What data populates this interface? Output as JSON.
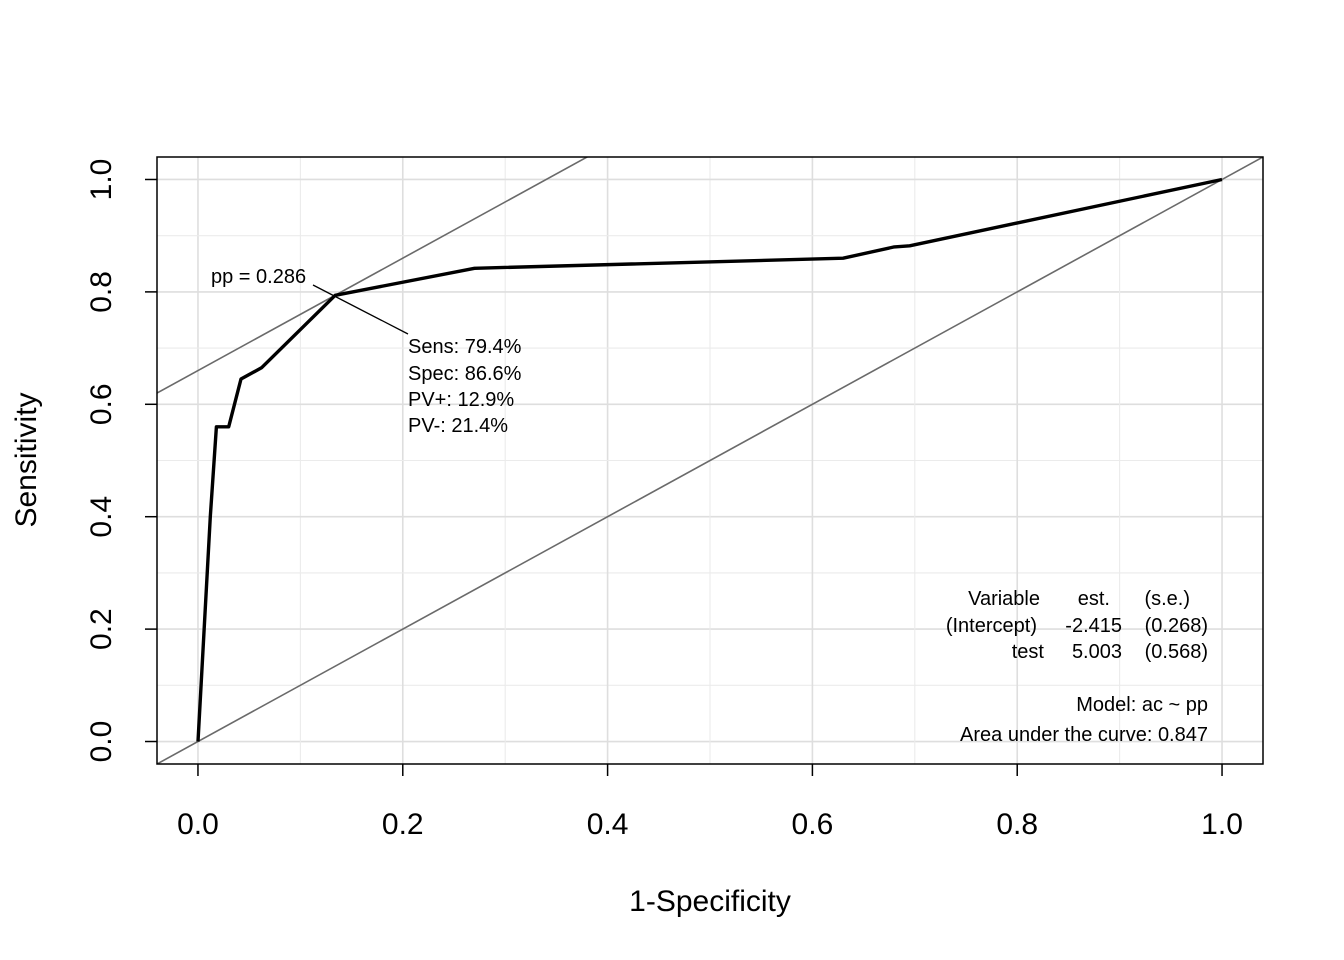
{
  "chart_data": {
    "type": "line",
    "title": "",
    "xlabel": "1-Specificity",
    "ylabel": "Sensitivity",
    "xlim": [
      -0.04,
      1.04
    ],
    "ylim": [
      -0.04,
      1.04
    ],
    "x_ticks": [
      "0.0",
      "0.2",
      "0.4",
      "0.6",
      "0.8",
      "1.0"
    ],
    "y_ticks": [
      "0.0",
      "0.2",
      "0.4",
      "0.6",
      "0.8",
      "1.0"
    ],
    "grid": true,
    "series": [
      {
        "x": [
          0.0,
          0.012,
          0.018,
          0.03,
          0.042,
          0.062,
          0.134,
          0.27,
          0.63,
          0.68,
          0.695,
          1.0
        ],
        "y": [
          0.0,
          0.4,
          0.56,
          0.56,
          0.645,
          0.665,
          0.794,
          0.842,
          0.86,
          0.88,
          0.882,
          1.0
        ]
      }
    ],
    "reference_lines": [
      {
        "kind": "diagonal",
        "slope": 1,
        "intercept": 0
      },
      {
        "kind": "tangent",
        "slope": 1,
        "intercept": 0.66
      }
    ],
    "optimal_point": {
      "x": 0.134,
      "y": 0.794
    },
    "point_label": "pp = 0.286",
    "cutoff_stats": [
      "Sens: 79.4%",
      "Spec: 86.6%",
      "PV+: 12.9%",
      "PV-: 21.4%"
    ],
    "model_table": {
      "header": [
        "Variable",
        "est.",
        "(s.e.)"
      ],
      "rows": [
        [
          "(Intercept)",
          "-2.415",
          "(0.268)"
        ],
        [
          "test",
          "5.003",
          "(0.568)"
        ]
      ]
    },
    "model_text": "Model:  ac ~ pp",
    "auc_text": "Area under the curve: 0.847"
  }
}
